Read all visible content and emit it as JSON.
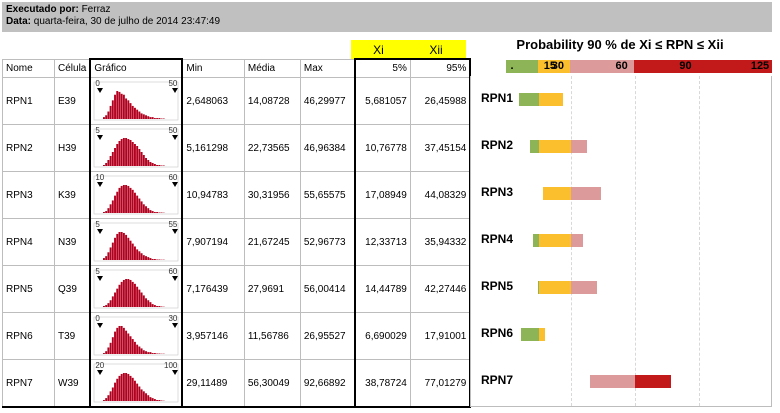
{
  "header": {
    "executed_by_label": "Executado por:",
    "executed_by_value": "Ferraz",
    "date_label": "Data:",
    "date_value": "quarta-feira, 30 de julho de 2014 23:47:49"
  },
  "badges": {
    "xi": "Xi",
    "xii": "Xii"
  },
  "probability_title": "Probability 90 % de Xi ≤ RPN ≤ Xii",
  "scale": {
    "min": 0,
    "max": 125,
    "ticks": [
      "15",
      "30",
      "60",
      "90",
      "125"
    ],
    "tick_values": [
      15,
      30,
      60,
      90,
      125
    ],
    "zero_mark": ".",
    "segments": [
      {
        "from": 0,
        "to": 15,
        "color": "#8db456"
      },
      {
        "from": 15,
        "to": 30,
        "color": "#fbbf2e"
      },
      {
        "from": 30,
        "to": 60,
        "color": "#dc9a9a"
      },
      {
        "from": 60,
        "to": 125,
        "color": "#c21a1a"
      }
    ]
  },
  "columns": {
    "nome": "Nome",
    "celula": "Célula",
    "grafico": "Gráfico",
    "min": "Min",
    "media": "Média",
    "max": "Max",
    "p5": "5%",
    "p95": "95%"
  },
  "rows": [
    {
      "nome": "RPN1",
      "celula": "E39",
      "gmin": "0",
      "gmax": "50",
      "min": "2,648063",
      "media": "14,08728",
      "max": "46,29977",
      "p5": "5,681057",
      "p95": "26,45988",
      "xi": 5.681,
      "xii": 26.46,
      "hist": [
        2,
        4,
        8,
        14,
        20,
        26,
        30,
        29,
        27,
        26,
        22,
        20,
        17,
        14,
        12,
        10,
        8,
        6,
        5,
        4,
        3,
        2,
        2,
        1,
        1,
        1,
        0.5,
        0.5
      ]
    },
    {
      "nome": "RPN2",
      "celula": "H39",
      "gmin": "5",
      "gmax": "50",
      "min": "5,161298",
      "media": "22,73565",
      "max": "46,96384",
      "p5": "10,76778",
      "p95": "37,45154",
      "xi": 10.77,
      "xii": 37.45,
      "hist": [
        1,
        3,
        6,
        10,
        14,
        18,
        22,
        25,
        27,
        28,
        28,
        27,
        26,
        24,
        22,
        20,
        17,
        14,
        11,
        8,
        6,
        4,
        3,
        2,
        1,
        1,
        0.5,
        0.5
      ]
    },
    {
      "nome": "RPN3",
      "celula": "K39",
      "gmin": "10",
      "gmax": "60",
      "min": "10,94783",
      "media": "30,31956",
      "max": "55,65575",
      "p5": "17,08949",
      "p95": "44,08329",
      "xi": 17.09,
      "xii": 44.08,
      "hist": [
        1,
        2,
        5,
        9,
        13,
        18,
        22,
        26,
        28,
        29,
        29,
        28,
        26,
        24,
        21,
        18,
        15,
        12,
        9,
        7,
        5,
        3,
        2,
        1,
        1,
        0.5,
        0.5,
        0.3
      ]
    },
    {
      "nome": "RPN4",
      "celula": "N39",
      "gmin": "5",
      "gmax": "55",
      "min": "7,907194",
      "media": "21,67245",
      "max": "52,96773",
      "p5": "12,33713",
      "p95": "35,94332",
      "xi": 12.34,
      "xii": 35.94,
      "hist": [
        2,
        4,
        8,
        13,
        18,
        23,
        27,
        29,
        29,
        28,
        26,
        23,
        20,
        17,
        14,
        11,
        9,
        7,
        5,
        4,
        3,
        2,
        1,
        1,
        0.5,
        0.5,
        0.3,
        0.3
      ]
    },
    {
      "nome": "RPN5",
      "celula": "Q39",
      "gmin": "5",
      "gmax": "60",
      "min": "7,176439",
      "media": "27,9691",
      "max": "56,00414",
      "p5": "14,44789",
      "p95": "42,27446",
      "xi": 14.45,
      "xii": 42.27,
      "hist": [
        1,
        2,
        4,
        7,
        11,
        15,
        19,
        23,
        26,
        28,
        29,
        29,
        28,
        26,
        24,
        21,
        18,
        15,
        12,
        9,
        7,
        5,
        3,
        2,
        1,
        1,
        0.5,
        0.3
      ]
    },
    {
      "nome": "RPN6",
      "celula": "T39",
      "gmin": "0",
      "gmax": "30",
      "min": "3,957146",
      "media": "11,56786",
      "max": "26,95527",
      "p5": "6,690029",
      "p95": "17,91001",
      "xi": 6.69,
      "xii": 17.91,
      "hist": [
        1,
        3,
        7,
        12,
        18,
        24,
        28,
        30,
        30,
        28,
        25,
        22,
        19,
        16,
        13,
        10,
        8,
        6,
        4,
        3,
        2,
        2,
        1,
        1,
        0.5,
        0.5,
        0.3,
        0.3
      ]
    },
    {
      "nome": "RPN7",
      "celula": "W39",
      "gmin": "20",
      "gmax": "100",
      "min": "29,11489",
      "media": "56,30049",
      "max": "92,66892",
      "p5": "38,78724",
      "p95": "77,01279",
      "xi": 38.79,
      "xii": 77.01,
      "hist": [
        1,
        3,
        6,
        10,
        14,
        19,
        23,
        26,
        28,
        29,
        29,
        28,
        26,
        24,
        21,
        18,
        15,
        12,
        10,
        8,
        6,
        4,
        3,
        2,
        1,
        1,
        0.5,
        0.3
      ]
    }
  ]
}
